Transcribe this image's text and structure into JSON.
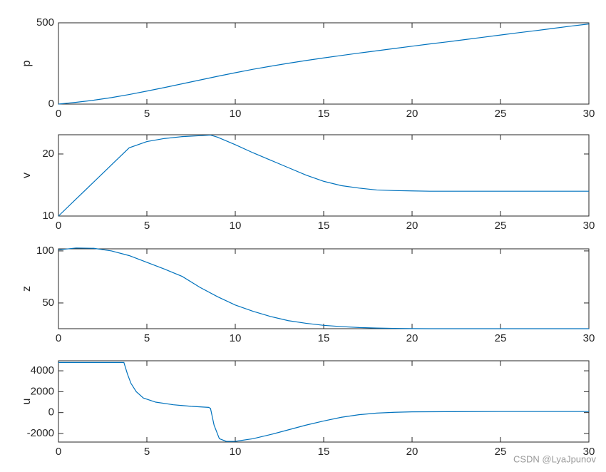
{
  "chart_data": [
    {
      "type": "line",
      "ylabel": "p",
      "color": "#0072bd",
      "x": [
        0,
        1,
        2,
        3,
        4,
        5,
        6,
        7,
        8,
        9,
        10,
        11,
        12,
        13,
        14,
        15,
        16,
        17,
        18,
        19,
        20,
        21,
        22,
        23,
        24,
        25,
        26,
        27,
        28,
        29,
        30
      ],
      "values": [
        0,
        11,
        24,
        40,
        59,
        80,
        102,
        125,
        148,
        171,
        193,
        214,
        233,
        251,
        268,
        284,
        299,
        314,
        328,
        342,
        356,
        370,
        383,
        397,
        411,
        425,
        439,
        452,
        466,
        480,
        493
      ],
      "xlim": [
        0,
        30
      ],
      "xticks": [
        0,
        5,
        10,
        15,
        20,
        25,
        30
      ],
      "ylim": [
        0,
        500
      ],
      "yticks": [
        0,
        500
      ]
    },
    {
      "type": "line",
      "ylabel": "v",
      "color": "#0072bd",
      "x": [
        0,
        1,
        2,
        3,
        4,
        5,
        6,
        7,
        8,
        8.6,
        9,
        10,
        11,
        12,
        13,
        14,
        15,
        16,
        17,
        18,
        19,
        20,
        21,
        22,
        23,
        24,
        25,
        26,
        27,
        28,
        29,
        30
      ],
      "values": [
        10,
        12.75,
        15.5,
        18.25,
        21,
        22,
        22.5,
        22.8,
        22.95,
        23.05,
        22.7,
        21.5,
        20.2,
        19,
        17.8,
        16.6,
        15.6,
        14.9,
        14.5,
        14.2,
        14.1,
        14.05,
        14,
        14,
        14,
        14,
        14,
        14,
        14,
        14,
        14,
        14
      ],
      "xlim": [
        0,
        30
      ],
      "xticks": [
        0,
        5,
        10,
        15,
        20,
        25,
        30
      ],
      "ylim": [
        10,
        23.1
      ],
      "yticks": [
        10,
        20
      ]
    },
    {
      "type": "line",
      "ylabel": "z",
      "color": "#0072bd",
      "x": [
        0,
        1,
        2,
        3,
        4,
        5,
        6,
        7,
        8,
        9,
        10,
        11,
        12,
        13,
        14,
        15,
        16,
        17,
        18,
        19,
        20,
        21,
        22,
        23,
        24,
        25,
        26,
        27,
        28,
        29,
        30
      ],
      "values": [
        101,
        102.8,
        102.5,
        100,
        95.5,
        89,
        82.5,
        75.5,
        65,
        56,
        48,
        42,
        37,
        33,
        30.5,
        28.5,
        27.3,
        26.4,
        25.9,
        25.6,
        25.4,
        25.3,
        25.3,
        25.3,
        25.3,
        25.3,
        25.3,
        25.3,
        25.3,
        25.3,
        25.3
      ],
      "xlim": [
        0,
        30
      ],
      "xticks": [
        0,
        5,
        10,
        15,
        20,
        25,
        30
      ],
      "ylim": [
        25.3,
        102
      ],
      "yticks": [
        50,
        100
      ]
    },
    {
      "type": "line",
      "ylabel": "u",
      "color": "#0072bd",
      "x": [
        0,
        3.7,
        3.9,
        4.1,
        4.4,
        4.8,
        5.5,
        6.5,
        7.5,
        8.5,
        8.6,
        8.8,
        9.1,
        9.5,
        10,
        11,
        12,
        13,
        14,
        15,
        16,
        17,
        18,
        19,
        20,
        22,
        25,
        30
      ],
      "values": [
        4800,
        4800,
        3700,
        2800,
        2000,
        1400,
        1000,
        750,
        600,
        500,
        400,
        -1200,
        -2500,
        -2760,
        -2750,
        -2500,
        -2100,
        -1650,
        -1200,
        -800,
        -450,
        -200,
        -50,
        30,
        70,
        90,
        100,
        100
      ],
      "xlim": [
        0,
        30
      ],
      "xticks": [
        0,
        5,
        10,
        15,
        20,
        25,
        30
      ],
      "ylim": [
        -2820,
        4960
      ],
      "yticks": [
        -2000,
        0,
        2000,
        4000
      ]
    }
  ],
  "watermark": "CSDN @LyaJpunov"
}
